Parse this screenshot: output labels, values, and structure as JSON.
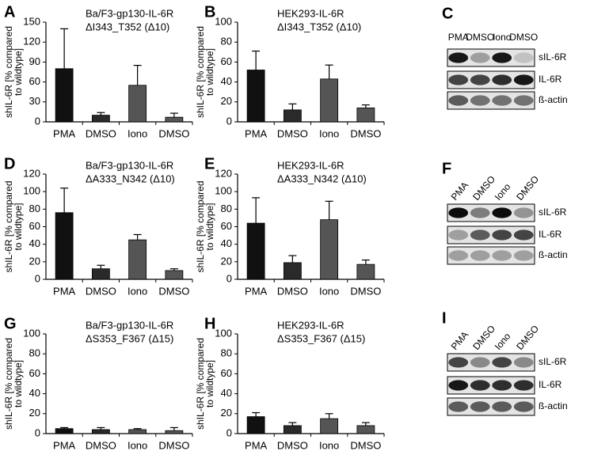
{
  "chart_data": [
    {
      "type": "bar",
      "panel": "A",
      "title": [
        "Ba/F3-gp130-IL-6R",
        "ΔI343_T352 (Δ10)"
      ],
      "ylabel": [
        "shIL-6R [% compared",
        "to wildtype]"
      ],
      "categories": [
        "PMA",
        "DMSO",
        "Iono",
        "DMSO"
      ],
      "values": [
        80,
        10,
        55,
        7
      ],
      "errors": [
        60,
        4,
        30,
        6
      ],
      "colors": [
        "#111111",
        "#2a2a2a",
        "#555555",
        "#555555"
      ],
      "ylim": [
        0,
        150
      ],
      "yticks": [
        0,
        30,
        60,
        90,
        120,
        150
      ]
    },
    {
      "type": "bar",
      "panel": "B",
      "title": [
        "HEK293-IL-6R",
        "ΔI343_T352 (Δ10)"
      ],
      "ylabel": [
        "shIL-6R [% compared",
        "to wildtype]"
      ],
      "categories": [
        "PMA",
        "DMSO",
        "Iono",
        "DMSO"
      ],
      "values": [
        52,
        12,
        43,
        14
      ],
      "errors": [
        19,
        6,
        14,
        3
      ],
      "colors": [
        "#111111",
        "#2a2a2a",
        "#555555",
        "#555555"
      ],
      "ylim": [
        0,
        100
      ],
      "yticks": [
        0,
        20,
        40,
        60,
        80,
        100
      ]
    },
    {
      "type": "bar",
      "panel": "D",
      "title": [
        "Ba/F3-gp130-IL-6R",
        "ΔA333_N342 (Δ10)"
      ],
      "ylabel": [
        "shIL-6R [% compared",
        "to wildtype]"
      ],
      "categories": [
        "PMA",
        "DMSO",
        "Iono",
        "DMSO"
      ],
      "values": [
        76,
        12,
        45,
        10
      ],
      "errors": [
        28,
        4,
        6,
        2
      ],
      "colors": [
        "#111111",
        "#2a2a2a",
        "#555555",
        "#555555"
      ],
      "ylim": [
        0,
        120
      ],
      "yticks": [
        0,
        20,
        40,
        60,
        80,
        100,
        120
      ]
    },
    {
      "type": "bar",
      "panel": "E",
      "title": [
        "HEK293-IL-6R",
        "ΔA333_N342 (Δ10)"
      ],
      "ylabel": [
        "shIL-6R [% compared",
        "to wildtype]"
      ],
      "categories": [
        "PMA",
        "DMSO",
        "Iono",
        "DMSO"
      ],
      "values": [
        64,
        19,
        68,
        17
      ],
      "errors": [
        29,
        8,
        21,
        5
      ],
      "colors": [
        "#111111",
        "#2a2a2a",
        "#555555",
        "#555555"
      ],
      "ylim": [
        0,
        120
      ],
      "yticks": [
        0,
        20,
        40,
        60,
        80,
        100,
        120
      ]
    },
    {
      "type": "bar",
      "panel": "G",
      "title": [
        "Ba/F3-gp130-IL-6R",
        "ΔS353_F367 (Δ15)"
      ],
      "ylabel": [
        "shIL-6R [% compared",
        "to wildtype]"
      ],
      "categories": [
        "PMA",
        "DMSO",
        "Iono",
        "DMSO"
      ],
      "values": [
        5,
        4,
        4,
        3
      ],
      "errors": [
        1,
        2,
        1,
        3
      ],
      "colors": [
        "#111111",
        "#2a2a2a",
        "#555555",
        "#555555"
      ],
      "ylim": [
        0,
        100
      ],
      "yticks": [
        0,
        20,
        40,
        60,
        80,
        100
      ]
    },
    {
      "type": "bar",
      "panel": "H",
      "title": [
        "HEK293-IL-6R",
        "ΔS353_F367 (Δ15)"
      ],
      "ylabel": [
        "shIL-6R [% compared",
        "to wildtype]"
      ],
      "categories": [
        "PMA",
        "DMSO",
        "Iono",
        "DMSO"
      ],
      "values": [
        17,
        8,
        15,
        8
      ],
      "errors": [
        4,
        3,
        5,
        3
      ],
      "colors": [
        "#111111",
        "#2a2a2a",
        "#555555",
        "#555555"
      ],
      "ylim": [
        0,
        100
      ],
      "yticks": [
        0,
        20,
        40,
        60,
        80,
        100
      ]
    }
  ],
  "blots": [
    {
      "panel": "C",
      "lanes": [
        "PMA",
        "DMSO",
        "Iono",
        "DMSO"
      ],
      "rows": [
        "sIL-6R",
        "IL-6R",
        "ß-actin"
      ]
    },
    {
      "panel": "F",
      "lanes": [
        "PMA",
        "DMSO",
        "Iono",
        "DMSO"
      ],
      "rows": [
        "sIL-6R",
        "IL-6R",
        "ß-actin"
      ]
    },
    {
      "panel": "I",
      "lanes": [
        "PMA",
        "DMSO",
        "Iono",
        "DMSO"
      ],
      "rows": [
        "sIL-6R",
        "IL-6R",
        "ß-actin"
      ]
    }
  ]
}
